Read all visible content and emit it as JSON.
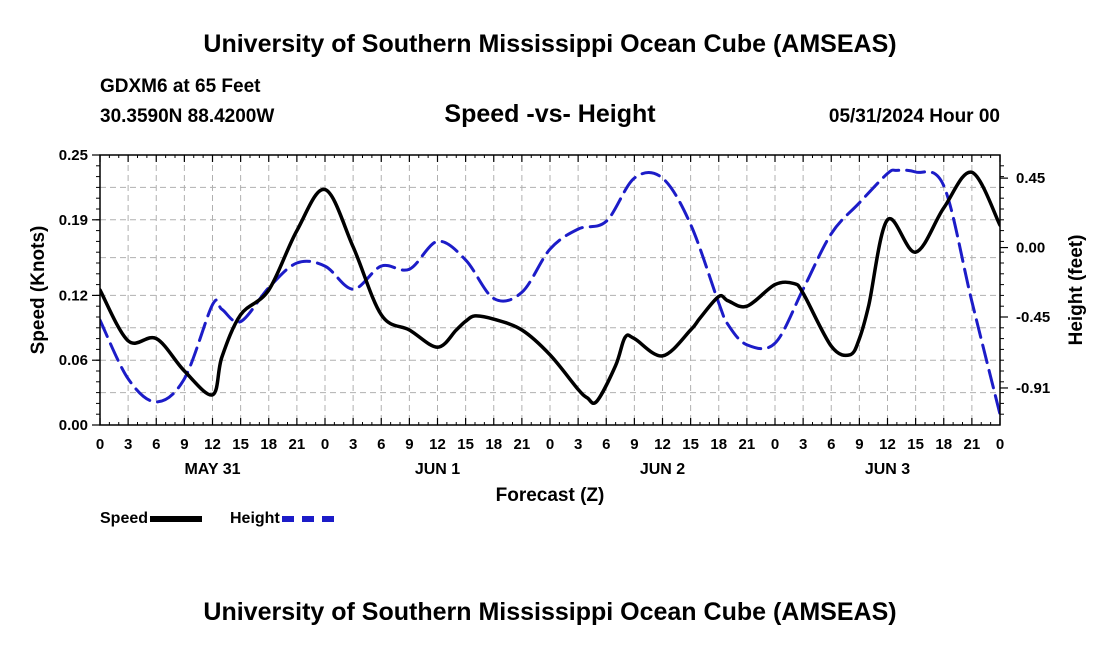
{
  "header": {
    "title": "University of Southern Mississippi Ocean Cube (AMSEAS)",
    "station": "GDXM6 at 65 Feet",
    "coords": "30.3590N  88.4200W",
    "subtitle": "Speed -vs- Height",
    "datetime": "05/31/2024 Hour 00"
  },
  "footer": {
    "title": "University of Southern Mississippi Ocean Cube (AMSEAS)"
  },
  "legend": {
    "speed_label": "Speed",
    "height_label": "Height"
  },
  "colors": {
    "speed": "#000000",
    "height": "#1c1cc8",
    "grid": "#b0b0b0"
  },
  "chart_data": {
    "type": "line",
    "xlabel": "Forecast (Z)",
    "ylabel_left": "Speed (Knots)",
    "ylabel_right": "Height (feet)",
    "x_range": [
      0,
      96
    ],
    "x_tick_labels": [
      "0",
      "3",
      "6",
      "9",
      "12",
      "15",
      "18",
      "21",
      "0",
      "3",
      "6",
      "9",
      "12",
      "15",
      "18",
      "21",
      "0",
      "3",
      "6",
      "9",
      "12",
      "15",
      "18",
      "21",
      "0",
      "3",
      "6",
      "9",
      "12",
      "15",
      "18",
      "21",
      "0"
    ],
    "day_labels": [
      {
        "label": "MAY 31",
        "x": 12
      },
      {
        "label": "JUN 1",
        "x": 36
      },
      {
        "label": "JUN 2",
        "x": 60
      },
      {
        "label": "JUN 3",
        "x": 84
      }
    ],
    "ylim_left": [
      0,
      0.25
    ],
    "left_ticks": [
      0,
      0.06,
      0.12,
      0.19,
      0.25
    ],
    "left_tick_labels": [
      "0.00",
      "0.06",
      "0.12",
      "0.19",
      "0.25"
    ],
    "ylim_right": [
      -1.15,
      0.6
    ],
    "right_ticks": [
      0.45,
      0.0,
      -0.45,
      -0.91
    ],
    "right_tick_labels": [
      "0.45",
      "0.00",
      "-0.45",
      "-0.91"
    ],
    "series": [
      {
        "name": "Speed",
        "axis": "left",
        "style": "solid",
        "x": [
          0,
          3,
          6,
          9,
          12,
          13,
          15,
          18,
          21,
          24,
          27,
          30,
          33,
          36,
          38,
          39,
          40,
          42,
          45,
          48,
          51,
          52,
          53,
          55,
          56,
          57,
          60,
          63,
          64,
          66,
          67,
          69,
          72,
          74,
          75,
          78,
          80,
          81,
          82,
          84,
          87,
          90,
          93,
          96
        ],
        "y": [
          0.125,
          0.078,
          0.08,
          0.05,
          0.028,
          0.063,
          0.102,
          0.125,
          0.18,
          0.218,
          0.165,
          0.102,
          0.088,
          0.072,
          0.088,
          0.096,
          0.101,
          0.098,
          0.088,
          0.065,
          0.033,
          0.025,
          0.022,
          0.055,
          0.081,
          0.08,
          0.064,
          0.088,
          0.099,
          0.119,
          0.115,
          0.11,
          0.13,
          0.131,
          0.122,
          0.073,
          0.065,
          0.08,
          0.111,
          0.19,
          0.16,
          0.201,
          0.234,
          0.185
        ]
      },
      {
        "name": "Height",
        "axis": "right",
        "style": "dashed",
        "x": [
          0,
          3,
          6,
          9,
          12,
          13,
          15,
          18,
          21,
          24,
          27,
          30,
          33,
          36,
          39,
          42,
          45,
          48,
          51,
          54,
          57,
          60,
          63,
          66,
          67,
          69,
          72,
          75,
          78,
          81,
          84,
          85,
          87,
          90,
          93,
          96
        ],
        "y": [
          -0.47,
          -0.85,
          -1.0,
          -0.85,
          -0.37,
          -0.4,
          -0.48,
          -0.26,
          -0.1,
          -0.12,
          -0.27,
          -0.12,
          -0.14,
          0.04,
          -0.08,
          -0.33,
          -0.29,
          -0.01,
          0.12,
          0.17,
          0.45,
          0.45,
          0.15,
          -0.36,
          -0.5,
          -0.63,
          -0.62,
          -0.27,
          0.09,
          0.29,
          0.48,
          0.5,
          0.49,
          0.4,
          -0.35,
          -1.08
        ]
      }
    ]
  }
}
